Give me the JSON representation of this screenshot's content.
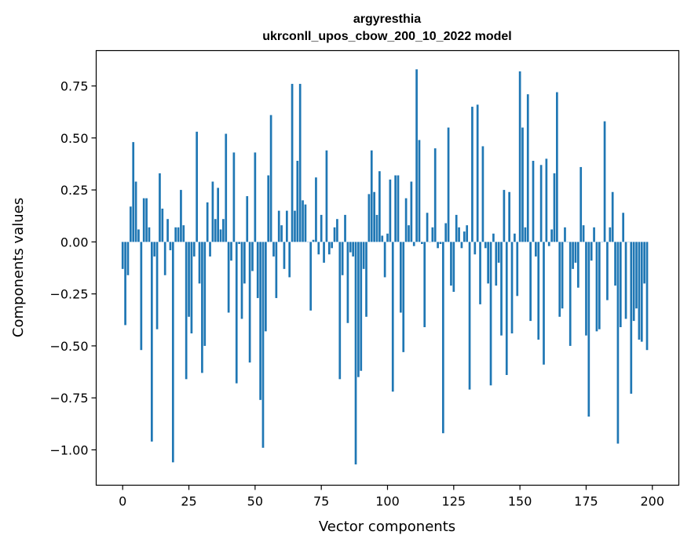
{
  "chart_data": {
    "type": "bar",
    "title_line1": "argyresthia",
    "title_line2": "ukrconll_upos_cbow_200_10_2022 model",
    "xlabel": "Vector components",
    "ylabel": "Components values",
    "xlim": [
      -10,
      210
    ],
    "ylim": [
      -1.17,
      0.92
    ],
    "xticks": [
      0,
      25,
      50,
      75,
      100,
      125,
      150,
      175,
      200
    ],
    "xtick_labels": [
      "0",
      "25",
      "50",
      "75",
      "100",
      "125",
      "150",
      "175",
      "200"
    ],
    "yticks": [
      0.75,
      0.5,
      0.25,
      0.0,
      -0.25,
      -0.5,
      -0.75,
      -1.0
    ],
    "ytick_labels": [
      "0.75",
      "0.50",
      "0.25",
      "0.00",
      "−0.25",
      "−0.50",
      "−0.75",
      "−1.00"
    ],
    "bar_color": "#1f77b4",
    "values": [
      -0.13,
      -0.4,
      -0.16,
      0.17,
      0.48,
      0.29,
      0.06,
      -0.52,
      0.21,
      0.21,
      0.07,
      -0.96,
      -0.07,
      -0.42,
      0.33,
      0.16,
      -0.16,
      0.11,
      -0.04,
      -1.06,
      0.07,
      0.07,
      0.25,
      0.08,
      -0.66,
      -0.36,
      -0.44,
      -0.07,
      0.53,
      -0.2,
      -0.63,
      -0.5,
      0.19,
      -0.07,
      0.29,
      0.11,
      0.26,
      0.06,
      0.11,
      0.52,
      -0.34,
      -0.09,
      0.43,
      -0.68,
      -0.01,
      -0.37,
      -0.2,
      0.22,
      -0.58,
      -0.14,
      0.43,
      -0.27,
      -0.76,
      -0.99,
      -0.43,
      0.32,
      0.61,
      -0.07,
      -0.27,
      0.15,
      0.08,
      -0.13,
      0.15,
      -0.17,
      0.76,
      0.15,
      0.39,
      0.76,
      0.2,
      0.18,
      0.0,
      -0.33,
      0.01,
      0.31,
      -0.06,
      0.13,
      -0.1,
      0.44,
      -0.06,
      -0.03,
      0.07,
      0.11,
      -0.66,
      -0.16,
      0.13,
      -0.39,
      -0.05,
      -0.07,
      -1.07,
      -0.65,
      -0.62,
      -0.13,
      -0.36,
      0.23,
      0.44,
      0.24,
      0.13,
      0.34,
      0.03,
      -0.17,
      0.04,
      0.3,
      -0.72,
      0.32,
      0.32,
      -0.34,
      -0.53,
      0.21,
      0.08,
      0.29,
      -0.02,
      0.83,
      0.49,
      -0.01,
      -0.41,
      0.14,
      0.0,
      0.07,
      0.45,
      -0.03,
      -0.01,
      -0.92,
      0.09,
      0.55,
      -0.21,
      -0.24,
      0.13,
      0.07,
      -0.03,
      0.05,
      0.08,
      -0.71,
      0.65,
      -0.06,
      0.66,
      -0.3,
      0.46,
      -0.03,
      -0.2,
      -0.69,
      0.04,
      -0.21,
      -0.1,
      -0.45,
      0.25,
      -0.64,
      0.24,
      -0.44,
      0.04,
      -0.26,
      0.82,
      0.55,
      0.07,
      0.71,
      -0.38,
      0.39,
      -0.07,
      -0.47,
      0.37,
      -0.59,
      0.4,
      -0.02,
      0.06,
      0.33,
      0.72,
      -0.36,
      -0.32,
      0.07,
      0.0,
      -0.5,
      -0.13,
      -0.1,
      -0.22,
      0.36,
      0.08,
      -0.45,
      -0.84,
      -0.09,
      0.07,
      -0.43,
      -0.42,
      0.0,
      0.58,
      -0.28,
      0.07,
      0.24,
      -0.21,
      -0.97,
      -0.41,
      0.14,
      -0.37,
      0.0,
      -0.73,
      -0.38,
      -0.32,
      -0.47,
      -0.48,
      -0.2,
      -0.52
    ]
  }
}
